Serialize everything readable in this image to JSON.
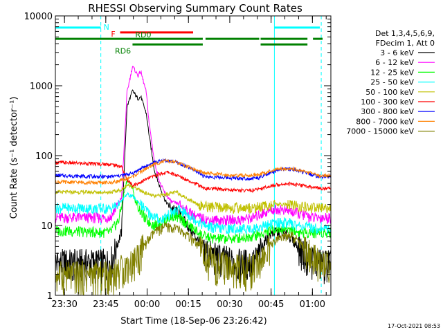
{
  "chart_data": {
    "type": "line",
    "title": "RHESSI Observing Summary Count Rates",
    "xlabel": "Start Time (18-Sep-06 23:26:42)",
    "ylabel": "Count Rate (s⁻¹ detector⁻¹)",
    "yscale": "log",
    "ylim": [
      1,
      10000
    ],
    "xlim_minutes": [
      0,
      100
    ],
    "x_ticks": [
      {
        "label": "23:30",
        "t": 3.3
      },
      {
        "label": "23:45",
        "t": 18.3
      },
      {
        "label": "00:00",
        "t": 33.3
      },
      {
        "label": "00:15",
        "t": 48.3
      },
      {
        "label": "00:30",
        "t": 63.3
      },
      {
        "label": "00:45",
        "t": 78.3
      },
      {
        "label": "01:00",
        "t": 93.3
      }
    ],
    "y_ticks": [
      {
        "label": "1",
        "v": 1
      },
      {
        "label": "10",
        "v": 10
      },
      {
        "label": "100",
        "v": 100
      },
      {
        "label": "1000",
        "v": 1000
      },
      {
        "label": "10000",
        "v": 10000
      }
    ],
    "legend_header": [
      "Det 1,3,4,5,6,9,",
      "FDecim 1, Att 0"
    ],
    "legend_position": "right",
    "stamp": "17-Oct-2021 08:53",
    "status_bars": [
      {
        "label": "N",
        "color": "#00ffff",
        "segments": [
          [
            0,
            16.5
          ],
          [
            79.5,
            96
          ]
        ],
        "level": 6800
      },
      {
        "label": "F",
        "color": "#ff0000",
        "segments": [
          [
            23.5,
            50
          ]
        ],
        "level": 5800
      },
      {
        "label": "RD0",
        "color": "#008000",
        "segments": [
          [
            0,
            53.5
          ],
          [
            54.5,
            74
          ],
          [
            74.5,
            91.5
          ],
          [
            93.5,
            97
          ]
        ],
        "level": 4700
      },
      {
        "label": "RD6",
        "color": "#008000",
        "segments": [
          [
            28,
            53.5
          ],
          [
            74.5,
            91.5
          ]
        ],
        "level": 3900
      }
    ],
    "vlines": [
      {
        "t": 0,
        "color": "#00ffff",
        "style": "solid"
      },
      {
        "t": 16.5,
        "color": "#00ffff",
        "style": "dashed"
      },
      {
        "t": 79.5,
        "color": "#00ffff",
        "style": "solid"
      },
      {
        "t": 96.5,
        "color": "#00ffff",
        "style": "dashed"
      }
    ],
    "series": [
      {
        "name": "3 - 6 keV",
        "color": "#000000",
        "points": [
          [
            0,
            3
          ],
          [
            16,
            3
          ],
          [
            20,
            3
          ],
          [
            24,
            8
          ],
          [
            26,
            500
          ],
          [
            28,
            850
          ],
          [
            30,
            650
          ],
          [
            31,
            700
          ],
          [
            33,
            400
          ],
          [
            34,
            200
          ],
          [
            36,
            60
          ],
          [
            38,
            35
          ],
          [
            40,
            22
          ],
          [
            42,
            18
          ],
          [
            45,
            15
          ],
          [
            48,
            10
          ],
          [
            52,
            6
          ],
          [
            56,
            4
          ],
          [
            60,
            3.5
          ],
          [
            66,
            3
          ],
          [
            72,
            3
          ],
          [
            74,
            4
          ],
          [
            76,
            6
          ],
          [
            79,
            8
          ],
          [
            82,
            8
          ],
          [
            85,
            7
          ],
          [
            88,
            5
          ],
          [
            91,
            4
          ],
          [
            93,
            3.5
          ],
          [
            96,
            3
          ]
        ]
      },
      {
        "name": "6 - 12 keV",
        "color": "#ff00ff",
        "points": [
          [
            0,
            13
          ],
          [
            16,
            13
          ],
          [
            20,
            13
          ],
          [
            24,
            25
          ],
          [
            26,
            800
          ],
          [
            28,
            1900
          ],
          [
            30,
            1400
          ],
          [
            31,
            1600
          ],
          [
            33,
            800
          ],
          [
            34,
            300
          ],
          [
            36,
            80
          ],
          [
            38,
            40
          ],
          [
            40,
            28
          ],
          [
            42,
            22
          ],
          [
            45,
            20
          ],
          [
            48,
            16
          ],
          [
            52,
            13
          ],
          [
            56,
            12
          ],
          [
            60,
            12
          ],
          [
            66,
            12
          ],
          [
            72,
            13
          ],
          [
            75,
            15
          ],
          [
            79,
            17
          ],
          [
            82,
            17
          ],
          [
            85,
            16
          ],
          [
            88,
            15
          ],
          [
            91,
            14
          ],
          [
            93,
            13
          ],
          [
            96,
            13
          ]
        ]
      },
      {
        "name": "12 - 25 keV",
        "color": "#00ff00",
        "points": [
          [
            0,
            8.5
          ],
          [
            16,
            8
          ],
          [
            20,
            8
          ],
          [
            23,
            12
          ],
          [
            25,
            30
          ],
          [
            26,
            45
          ],
          [
            28,
            35
          ],
          [
            29,
            22
          ],
          [
            31,
            16
          ],
          [
            33,
            12
          ],
          [
            36,
            10
          ],
          [
            40,
            12
          ],
          [
            43,
            14
          ],
          [
            46,
            12
          ],
          [
            50,
            9
          ],
          [
            54,
            7
          ],
          [
            58,
            6.5
          ],
          [
            64,
            6.5
          ],
          [
            70,
            7
          ],
          [
            75,
            7.5
          ],
          [
            79,
            9
          ],
          [
            82,
            9
          ],
          [
            85,
            9
          ],
          [
            88,
            8
          ],
          [
            91,
            8
          ],
          [
            96,
            8
          ]
        ]
      },
      {
        "name": "25 - 50 keV",
        "color": "#00ffff",
        "points": [
          [
            0,
            18
          ],
          [
            16,
            17.5
          ],
          [
            20,
            17.5
          ],
          [
            23,
            20
          ],
          [
            26,
            28
          ],
          [
            28,
            26
          ],
          [
            30,
            22
          ],
          [
            34,
            15
          ],
          [
            38,
            12
          ],
          [
            42,
            15
          ],
          [
            45,
            17
          ],
          [
            50,
            13
          ],
          [
            54,
            10
          ],
          [
            60,
            9
          ],
          [
            66,
            9
          ],
          [
            72,
            9
          ],
          [
            76,
            10
          ],
          [
            80,
            11
          ],
          [
            84,
            11
          ],
          [
            88,
            10
          ],
          [
            92,
            9.5
          ],
          [
            96,
            9
          ]
        ]
      },
      {
        "name": "50 - 100 keV",
        "color": "#c0c000",
        "points": [
          [
            0,
            30
          ],
          [
            16,
            30
          ],
          [
            20,
            30
          ],
          [
            24,
            32
          ],
          [
            26,
            38
          ],
          [
            28,
            36
          ],
          [
            32,
            30
          ],
          [
            36,
            26
          ],
          [
            40,
            28
          ],
          [
            44,
            30
          ],
          [
            48,
            24
          ],
          [
            52,
            20
          ],
          [
            54,
            19
          ],
          [
            60,
            18
          ],
          [
            66,
            18
          ],
          [
            72,
            18
          ],
          [
            76,
            19
          ],
          [
            80,
            20
          ],
          [
            84,
            20
          ],
          [
            88,
            19
          ],
          [
            92,
            18
          ],
          [
            96,
            18
          ]
        ]
      },
      {
        "name": "100 - 300 keV",
        "color": "#ff0000",
        "points": [
          [
            0,
            80
          ],
          [
            16,
            76
          ],
          [
            20,
            75
          ],
          [
            24,
            70
          ],
          [
            26,
            45
          ],
          [
            28,
            38
          ],
          [
            30,
            40
          ],
          [
            34,
            48
          ],
          [
            38,
            55
          ],
          [
            41,
            58
          ],
          [
            44,
            52
          ],
          [
            48,
            45
          ],
          [
            52,
            38
          ],
          [
            54,
            34
          ],
          [
            60,
            33
          ],
          [
            66,
            32
          ],
          [
            72,
            32
          ],
          [
            76,
            35
          ],
          [
            80,
            38
          ],
          [
            84,
            40
          ],
          [
            88,
            38
          ],
          [
            92,
            36
          ],
          [
            96,
            34
          ]
        ]
      },
      {
        "name": "300 - 800 keV",
        "color": "#0000ff",
        "points": [
          [
            0,
            52
          ],
          [
            16,
            50
          ],
          [
            20,
            50
          ],
          [
            24,
            52
          ],
          [
            28,
            56
          ],
          [
            32,
            68
          ],
          [
            36,
            80
          ],
          [
            40,
            86
          ],
          [
            44,
            80
          ],
          [
            48,
            68
          ],
          [
            52,
            58
          ],
          [
            54,
            50
          ],
          [
            58,
            49
          ],
          [
            64,
            48
          ],
          [
            70,
            47
          ],
          [
            74,
            48
          ],
          [
            78,
            56
          ],
          [
            82,
            64
          ],
          [
            86,
            64
          ],
          [
            90,
            58
          ],
          [
            94,
            52
          ],
          [
            96,
            50
          ]
        ]
      },
      {
        "name": "800 - 7000 keV",
        "color": "#ff8000",
        "points": [
          [
            0,
            42
          ],
          [
            16,
            41
          ],
          [
            20,
            41
          ],
          [
            24,
            44
          ],
          [
            28,
            50
          ],
          [
            32,
            62
          ],
          [
            36,
            76
          ],
          [
            40,
            84
          ],
          [
            44,
            80
          ],
          [
            48,
            70
          ],
          [
            52,
            60
          ],
          [
            54,
            56
          ],
          [
            58,
            55
          ],
          [
            64,
            52
          ],
          [
            70,
            52
          ],
          [
            74,
            54
          ],
          [
            78,
            60
          ],
          [
            82,
            65
          ],
          [
            86,
            65
          ],
          [
            90,
            60
          ],
          [
            94,
            54
          ],
          [
            96,
            52
          ]
        ]
      },
      {
        "name": "7000 - 15000 keV",
        "color": "#808000",
        "points": [
          [
            0,
            2
          ],
          [
            16,
            2
          ],
          [
            20,
            2
          ],
          [
            24,
            2.5
          ],
          [
            28,
            3
          ],
          [
            32,
            5
          ],
          [
            36,
            8
          ],
          [
            40,
            9.5
          ],
          [
            44,
            9
          ],
          [
            48,
            7
          ],
          [
            52,
            5
          ],
          [
            54,
            4
          ],
          [
            58,
            3
          ],
          [
            64,
            2.5
          ],
          [
            70,
            2.5
          ],
          [
            74,
            3
          ],
          [
            78,
            5
          ],
          [
            82,
            7
          ],
          [
            86,
            7
          ],
          [
            90,
            5
          ],
          [
            94,
            3.5
          ],
          [
            96,
            3
          ]
        ]
      }
    ]
  }
}
